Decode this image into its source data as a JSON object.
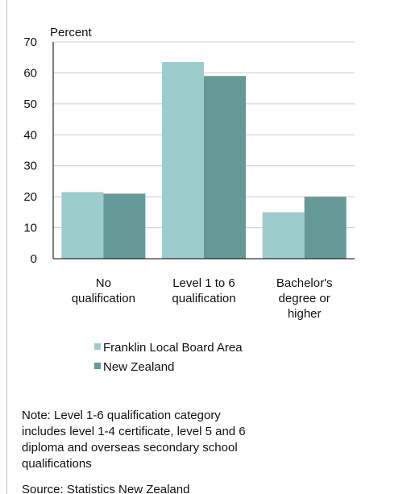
{
  "chart_data": {
    "type": "bar",
    "y_label": "Percent",
    "categories": [
      [
        "No",
        "qualification"
      ],
      [
        "Level 1 to 6",
        "qualification"
      ],
      [
        "Bachelor's",
        "degree or",
        "higher"
      ]
    ],
    "series": [
      {
        "name": "Franklin Local Board Area",
        "color": "#9ccccb",
        "values": [
          21.5,
          63.5,
          15
        ]
      },
      {
        "name": "New Zealand",
        "color": "#649997",
        "values": [
          21,
          59,
          20
        ]
      }
    ],
    "ylim": [
      0,
      70
    ],
    "yticks": [
      0,
      10,
      20,
      30,
      40,
      50,
      60,
      70
    ],
    "grid": true,
    "note": [
      "Note: Level 1-6 qualification category",
      "includes level 1-4 certificate, level 5 and 6",
      "diploma and overseas secondary school",
      "qualifications"
    ],
    "source": "Source: Statistics New Zealand"
  }
}
